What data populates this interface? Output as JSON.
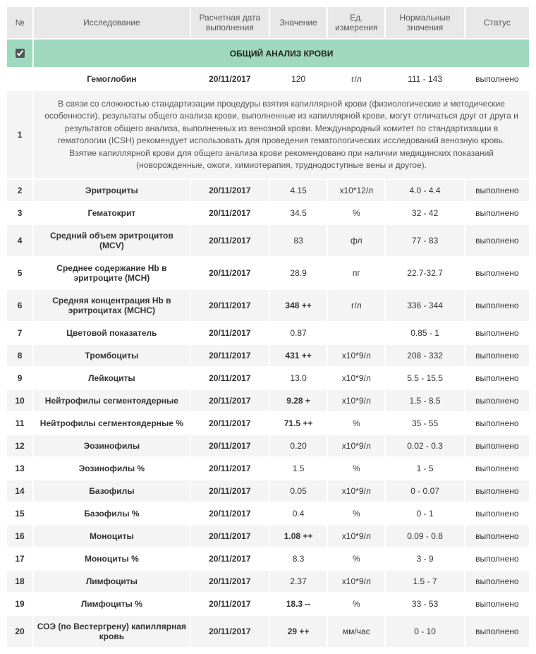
{
  "columns": {
    "num": "№",
    "test": "Исследование",
    "date": "Расчетная дата выполнения",
    "value": "Значение",
    "unit": "Ед. измерения",
    "range": "Нормальные значения",
    "status": "Статус"
  },
  "section_title": "ОБЩИЙ АНАЛИЗ КРОВИ",
  "note": "В связи со сложностью стандартизации процедуры взятия капиллярной крови (физиологические и методические особенности), результаты общего анализа крови, выполненные из капиллярной крови, могут отличаться друг от друга и результатов общего анализа, выполненных из венозной крови. Международный комитет по стандартизации в гематологии (ICSH) рекомендует использовать для проведения гематологических исследований венозную кровь. Взятие капиллярной крови для общего анализа крови рекомендовано при наличии медицинских показаний (новорожденные, ожоги, химиотерапия, труднодоступные вены и другое).",
  "rows": [
    {
      "n": "1",
      "test": "Гемоглобин",
      "date": "20/11/2017",
      "val": "120",
      "bold": false,
      "unit": "г/л",
      "range": "111 - 143",
      "status": "выполнено"
    },
    {
      "n": "2",
      "test": "Эритроциты",
      "date": "20/11/2017",
      "val": "4.15",
      "bold": false,
      "unit": "x10*12/л",
      "range": "4.0 - 4.4",
      "status": "выполнено"
    },
    {
      "n": "3",
      "test": "Гематокрит",
      "date": "20/11/2017",
      "val": "34.5",
      "bold": false,
      "unit": "%",
      "range": "32 - 42",
      "status": "выполнено"
    },
    {
      "n": "4",
      "test": "Средний объем эритроцитов (MCV)",
      "date": "20/11/2017",
      "val": "83",
      "bold": false,
      "unit": "фл",
      "range": "77 - 83",
      "status": "выполнено"
    },
    {
      "n": "5",
      "test": "Среднее содержание Hb в эритроците (MCH)",
      "date": "20/11/2017",
      "val": "28.9",
      "bold": false,
      "unit": "пг",
      "range": "22.7-32.7",
      "status": "выполнено"
    },
    {
      "n": "6",
      "test": "Средняя концентрация Hb в эритроцитах (MCHC)",
      "date": "20/11/2017",
      "val": "348 ++",
      "bold": true,
      "unit": "г/л",
      "range": "336 - 344",
      "status": "выполнено"
    },
    {
      "n": "7",
      "test": "Цветовой показатель",
      "date": "20/11/2017",
      "val": "0.87",
      "bold": false,
      "unit": "",
      "range": "0.85 - 1",
      "status": "выполнено"
    },
    {
      "n": "8",
      "test": "Тромбоциты",
      "date": "20/11/2017",
      "val": "431 ++",
      "bold": true,
      "unit": "x10*9/л",
      "range": "208 - 332",
      "status": "выполнено"
    },
    {
      "n": "9",
      "test": "Лейкоциты",
      "date": "20/11/2017",
      "val": "13.0",
      "bold": false,
      "unit": "x10*9/л",
      "range": "5.5 - 15.5",
      "status": "выполнено"
    },
    {
      "n": "10",
      "test": "Нейтрофилы сегментоядерные",
      "date": "20/11/2017",
      "val": "9.28 +",
      "bold": true,
      "unit": "x10*9/л",
      "range": "1.5 - 8.5",
      "status": "выполнено"
    },
    {
      "n": "11",
      "test": "Нейтрофилы сегментоядерные %",
      "date": "20/11/2017",
      "val": "71.5 ++",
      "bold": true,
      "unit": "%",
      "range": "35 - 55",
      "status": "выполнено"
    },
    {
      "n": "12",
      "test": "Эозинофилы",
      "date": "20/11/2017",
      "val": "0.20",
      "bold": false,
      "unit": "x10*9/л",
      "range": "0.02 - 0.3",
      "status": "выполнено"
    },
    {
      "n": "13",
      "test": "Эозинофилы %",
      "date": "20/11/2017",
      "val": "1.5",
      "bold": false,
      "unit": "%",
      "range": "1 - 5",
      "status": "выполнено"
    },
    {
      "n": "14",
      "test": "Базофилы",
      "date": "20/11/2017",
      "val": "0.05",
      "bold": false,
      "unit": "x10*9/л",
      "range": "0 - 0.07",
      "status": "выполнено"
    },
    {
      "n": "15",
      "test": "Базофилы %",
      "date": "20/11/2017",
      "val": "0.4",
      "bold": false,
      "unit": "%",
      "range": "0 - 1",
      "status": "выполнено"
    },
    {
      "n": "16",
      "test": "Моноциты",
      "date": "20/11/2017",
      "val": "1.08 ++",
      "bold": true,
      "unit": "x10*9/л",
      "range": "0.09 - 0.8",
      "status": "выполнено"
    },
    {
      "n": "17",
      "test": "Моноциты %",
      "date": "20/11/2017",
      "val": "8.3",
      "bold": false,
      "unit": "%",
      "range": "3 - 9",
      "status": "выполнено"
    },
    {
      "n": "18",
      "test": "Лимфоциты",
      "date": "20/11/2017",
      "val": "2.37",
      "bold": false,
      "unit": "x10*9/л",
      "range": "1.5 - 7",
      "status": "выполнено"
    },
    {
      "n": "19",
      "test": "Лимфоциты %",
      "date": "20/11/2017",
      "val": "18.3 --",
      "bold": true,
      "unit": "%",
      "range": "33 - 53",
      "status": "выполнено"
    },
    {
      "n": "20",
      "test": "СОЭ (по Вестергрену) капиллярная кровь",
      "date": "20/11/2017",
      "val": "29 ++",
      "bold": true,
      "unit": "мм/час",
      "range": "0 - 10",
      "status": "выполнено"
    }
  ]
}
